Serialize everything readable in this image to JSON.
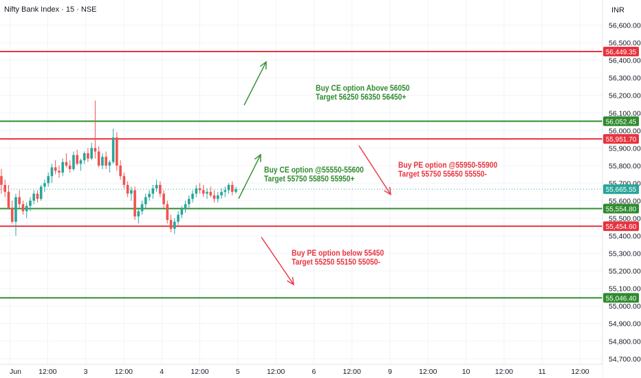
{
  "header": {
    "title": "Nifty Bank Index · 15 · NSE",
    "currency": "INR"
  },
  "colors": {
    "green": "#2e8b2e",
    "red": "#e8333f",
    "up_candle": "#26a69a",
    "down_candle": "#ef5350",
    "last_price": "#26a69a"
  },
  "chart_data": {
    "type": "candlestick",
    "price_scale": {
      "ticks": [
        "56,600.00",
        "56,500.00",
        "56,400.00",
        "56,300.00",
        "56,200.00",
        "56,100.00",
        "56,000.00",
        "55,900.00",
        "55,800.00",
        "55,700.00",
        "55,600.00",
        "55,500.00",
        "55,400.00",
        "55,300.00",
        "55,200.00",
        "55,100.00",
        "55,000.00",
        "54,900.00",
        "54,800.00",
        "54,700.00"
      ],
      "range": [
        54665,
        56720
      ]
    },
    "time_axis": [
      "Jun",
      "12:00",
      "3",
      "12:00",
      "4",
      "12:00",
      "5",
      "12:00",
      "6",
      "12:00",
      "9",
      "12:00",
      "10",
      "12:00",
      "11",
      "12:00"
    ],
    "level_lines": [
      {
        "value": 56449.35,
        "label": "56,449.35",
        "color": "red"
      },
      {
        "value": 56052.45,
        "label": "56,052.45",
        "color": "green"
      },
      {
        "value": 55951.7,
        "label": "55,951.70",
        "color": "red"
      },
      {
        "value": 55554.8,
        "label": "55,554.80",
        "color": "green"
      },
      {
        "value": 55454.6,
        "label": "55,454.60",
        "color": "red"
      },
      {
        "value": 55046.4,
        "label": "55,046.40",
        "color": "green"
      }
    ],
    "last_price": {
      "value": 55665.55,
      "label": "55,665.55"
    },
    "candles": [
      [
        55740,
        55780,
        55640,
        55690
      ],
      [
        55690,
        55720,
        55620,
        55650
      ],
      [
        55650,
        55690,
        55550,
        55560
      ],
      [
        55560,
        55600,
        55470,
        55480
      ],
      [
        55480,
        55640,
        55400,
        55620
      ],
      [
        55620,
        55660,
        55560,
        55580
      ],
      [
        55580,
        55600,
        55520,
        55540
      ],
      [
        55540,
        55590,
        55500,
        55570
      ],
      [
        55570,
        55620,
        55540,
        55600
      ],
      [
        55600,
        55660,
        55580,
        55640
      ],
      [
        55640,
        55660,
        55590,
        55610
      ],
      [
        55610,
        55690,
        55600,
        55680
      ],
      [
        55680,
        55720,
        55650,
        55700
      ],
      [
        55700,
        55760,
        55680,
        55740
      ],
      [
        55740,
        55810,
        55700,
        55790
      ],
      [
        55790,
        55830,
        55750,
        55770
      ],
      [
        55770,
        55800,
        55730,
        55760
      ],
      [
        55760,
        55840,
        55740,
        55820
      ],
      [
        55820,
        55870,
        55790,
        55800
      ],
      [
        55800,
        55830,
        55760,
        55780
      ],
      [
        55780,
        55880,
        55770,
        55860
      ],
      [
        55860,
        55890,
        55800,
        55810
      ],
      [
        55810,
        55840,
        55770,
        55830
      ],
      [
        55830,
        55880,
        55810,
        55870
      ],
      [
        55870,
        55900,
        55820,
        55840
      ],
      [
        55840,
        55930,
        55830,
        55900
      ],
      [
        55900,
        56170,
        55840,
        55880
      ],
      [
        55880,
        55910,
        55790,
        55800
      ],
      [
        55800,
        55870,
        55780,
        55850
      ],
      [
        55850,
        55880,
        55780,
        55800
      ],
      [
        55800,
        55830,
        55760,
        55820
      ],
      [
        55820,
        56010,
        55810,
        55960
      ],
      [
        55960,
        55990,
        55770,
        55800
      ],
      [
        55800,
        55830,
        55720,
        55740
      ],
      [
        55740,
        55760,
        55670,
        55690
      ],
      [
        55690,
        55710,
        55620,
        55640
      ],
      [
        55640,
        55680,
        55600,
        55660
      ],
      [
        55660,
        55680,
        55490,
        55510
      ],
      [
        55510,
        55560,
        55470,
        55540
      ],
      [
        55540,
        55600,
        55520,
        55580
      ],
      [
        55580,
        55640,
        55560,
        55620
      ],
      [
        55620,
        55660,
        55600,
        55640
      ],
      [
        55640,
        55690,
        55610,
        55670
      ],
      [
        55670,
        55720,
        55650,
        55690
      ],
      [
        55690,
        55710,
        55620,
        55640
      ],
      [
        55640,
        55660,
        55560,
        55580
      ],
      [
        55580,
        55600,
        55470,
        55490
      ],
      [
        55490,
        55520,
        55420,
        55440
      ],
      [
        55440,
        55500,
        55410,
        55480
      ],
      [
        55480,
        55540,
        55460,
        55520
      ],
      [
        55520,
        55570,
        55500,
        55550
      ],
      [
        55550,
        55600,
        55530,
        55580
      ],
      [
        55580,
        55630,
        55560,
        55610
      ],
      [
        55610,
        55660,
        55590,
        55640
      ],
      [
        55640,
        55690,
        55620,
        55670
      ],
      [
        55670,
        55700,
        55640,
        55660
      ],
      [
        55660,
        55690,
        55620,
        55640
      ],
      [
        55640,
        55670,
        55610,
        55650
      ],
      [
        55650,
        55680,
        55620,
        55630
      ],
      [
        55630,
        55660,
        55590,
        55610
      ],
      [
        55610,
        55650,
        55590,
        55630
      ],
      [
        55630,
        55670,
        55610,
        55650
      ],
      [
        55650,
        55680,
        55620,
        55660
      ],
      [
        55660,
        55700,
        55640,
        55690
      ],
      [
        55690,
        55710,
        55630,
        55650
      ],
      [
        55650,
        55680,
        55640,
        55665
      ]
    ],
    "annotations": [
      {
        "color": "green",
        "lines": [
          "Buy CE option Above 56050",
          "Target 56250 56350 56450+"
        ]
      },
      {
        "color": "green",
        "lines": [
          "Buy CE option @55550-55600",
          "Target 55750 55850 55950+"
        ]
      },
      {
        "color": "red",
        "lines": [
          "Buy PE option @55950-55900",
          "Target 55750 55650 55550-"
        ]
      },
      {
        "color": "red",
        "lines": [
          "Buy PE option below 55450",
          "Target 55250 55150 55050-"
        ]
      }
    ],
    "arrows": [
      {
        "color": "green",
        "direction": "up"
      },
      {
        "color": "green",
        "direction": "up"
      },
      {
        "color": "red",
        "direction": "down"
      },
      {
        "color": "red",
        "direction": "down"
      }
    ]
  }
}
